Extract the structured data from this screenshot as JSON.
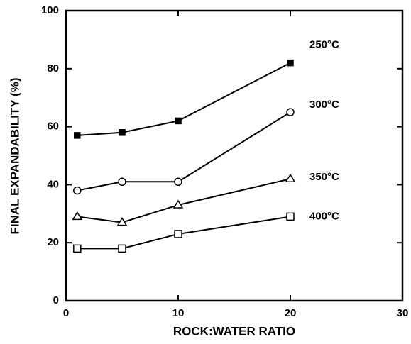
{
  "chart_data": {
    "type": "line",
    "xlabel": "ROCK:WATER RATIO",
    "ylabel": "FINAL EXPANDABILITY (%)",
    "x": [
      1,
      5,
      10,
      20
    ],
    "series": [
      {
        "name": "250°C",
        "color": "#000000",
        "marker": "square-filled",
        "values": [
          57,
          58,
          62,
          82
        ]
      },
      {
        "name": "300°C",
        "color": "#000000",
        "marker": "circle-open",
        "values": [
          38,
          41,
          41,
          65
        ]
      },
      {
        "name": "350°C",
        "color": "#000000",
        "marker": "triangle-open",
        "values": [
          29,
          27,
          33,
          42
        ]
      },
      {
        "name": "400°C",
        "color": "#000000",
        "marker": "square-open",
        "values": [
          18,
          18,
          23,
          29
        ]
      }
    ],
    "xlim": [
      0,
      30
    ],
    "xticks": [
      0,
      10,
      20,
      30
    ],
    "ylim": [
      0,
      100
    ],
    "yticks": [
      0,
      20,
      40,
      60,
      80,
      100
    ]
  }
}
